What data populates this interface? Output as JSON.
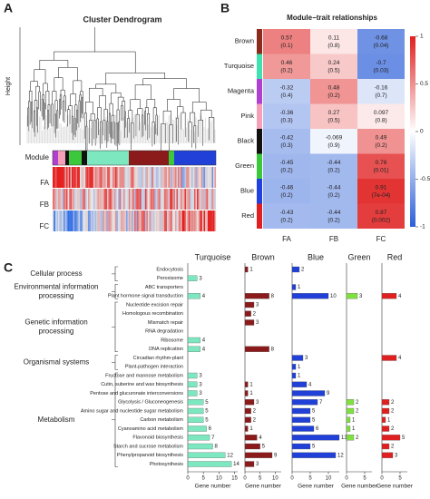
{
  "panel_a": {
    "letter": "A",
    "title": "Cluster Dendrogram",
    "y_label": "Height",
    "tracks": [
      "Module",
      "FA",
      "FB",
      "FC"
    ]
  },
  "panel_b": {
    "letter": "B",
    "title": "Module−trait relationships",
    "rows": [
      "Brown",
      "Turquoise",
      "Magenta",
      "Pink",
      "Black",
      "Green",
      "Blue",
      "Red"
    ],
    "row_colors": [
      "#8b2a1a",
      "#40e0b0",
      "#b040d0",
      "#f4a0b8",
      "#111111",
      "#3cc83c",
      "#2040e0",
      "#e02020"
    ],
    "columns": [
      "FA",
      "FB",
      "FC"
    ],
    "cells": [
      [
        {
          "r": 0.57,
          "p": "(0.1)"
        },
        {
          "r": 0.11,
          "p": "(0.8)"
        },
        {
          "r": -0.68,
          "p": "(0.04)"
        }
      ],
      [
        {
          "r": 0.46,
          "p": "(0.2)"
        },
        {
          "r": 0.24,
          "p": "(0.5)"
        },
        {
          "r": -0.7,
          "p": "(0.03)"
        }
      ],
      [
        {
          "r": -0.32,
          "p": "(0.4)"
        },
        {
          "r": 0.48,
          "p": "(0.2)"
        },
        {
          "r": -0.16,
          "p": "(0.7)"
        }
      ],
      [
        {
          "r": -0.36,
          "p": "(0.3)"
        },
        {
          "r": 0.27,
          "p": "(0.5)"
        },
        {
          "r": 0.097,
          "p": "(0.8)"
        }
      ],
      [
        {
          "r": -0.42,
          "p": "(0.3)"
        },
        {
          "r": -0.069,
          "p": "(0.9)"
        },
        {
          "r": 0.49,
          "p": "(0.2)"
        }
      ],
      [
        {
          "r": -0.45,
          "p": "(0.2)"
        },
        {
          "r": -0.44,
          "p": "(0.2)"
        },
        {
          "r": 0.78,
          "p": "(0.01)"
        }
      ],
      [
        {
          "r": -0.46,
          "p": "(0.2)"
        },
        {
          "r": -0.44,
          "p": "(0.2)"
        },
        {
          "r": 0.91,
          "p": "(7e-04)"
        }
      ],
      [
        {
          "r": -0.43,
          "p": "(0.2)"
        },
        {
          "r": -0.44,
          "p": "(0.2)"
        },
        {
          "r": 0.87,
          "p": "(0.002)"
        }
      ]
    ],
    "scale_ticks": [
      1,
      0.5,
      0,
      -0.5,
      -1
    ]
  },
  "panel_c": {
    "letter": "C",
    "x_label": "Gene number",
    "groups": [
      {
        "lines": [
          "Cellular process"
        ],
        "pathways": [
          "Endocytosis",
          "Peroxisome"
        ]
      },
      {
        "lines": [
          "Environmental information",
          "processing"
        ],
        "pathways": [
          "ABC transporters",
          "Plant hormone signal transduction"
        ]
      },
      {
        "lines": [
          "Genetic information",
          "processing"
        ],
        "pathways": [
          "Nucleotide excision repair",
          "Homologous recombination",
          "Mismatch repair",
          "RNA degradation",
          "Ribosome",
          "DNA replication"
        ]
      },
      {
        "lines": [
          "Organismal systems"
        ],
        "pathways": [
          "Circadian rhythm-plant",
          "Plant-pathogen interaction"
        ]
      },
      {
        "lines": [
          "Metabolism"
        ],
        "pathways": [
          "Fructose and mannose metabolism",
          "Cutin, suberine and wax biosynthesis",
          "Pentose and glucuronate interconversions",
          "Glycolysis / Gluconeogenesis",
          "Amino sugar and nucleotide sugar metabolism",
          "Carbon metabolism",
          "Cyanoamino acid metabolism",
          "Flavonoid biosynthesis",
          "Starch and sucrose metabolism",
          "Phenylpropanoid biosynthesis",
          "Photosynthesis"
        ]
      }
    ],
    "modules": [
      {
        "name": "Turquoise",
        "color": "#7de8c0",
        "xlim": [
          0,
          16
        ],
        "ticks": [
          0,
          5,
          10,
          15
        ],
        "values": [
          null,
          3,
          null,
          4,
          null,
          null,
          null,
          null,
          4,
          4,
          null,
          null,
          3,
          3,
          3,
          5,
          5,
          5,
          6,
          7,
          8,
          12,
          14
        ]
      },
      {
        "name": "Brown",
        "color": "#8b1a1a",
        "xlim": [
          0,
          12
        ],
        "ticks": [
          0,
          5,
          10
        ],
        "values": [
          1,
          null,
          null,
          8,
          3,
          2,
          3,
          null,
          null,
          8,
          null,
          null,
          null,
          1,
          1,
          3,
          2,
          2,
          1,
          4,
          5,
          9,
          3
        ]
      },
      {
        "name": "Blue",
        "color": "#2040d8",
        "xlim": [
          0,
          13
        ],
        "ticks": [
          0,
          5,
          10
        ],
        "values": [
          2,
          null,
          1,
          10,
          null,
          null,
          null,
          null,
          null,
          null,
          3,
          1,
          1,
          4,
          9,
          7,
          5,
          5,
          6,
          13,
          5,
          12,
          null
        ]
      },
      {
        "name": "Green",
        "color": "#80e040",
        "xlim": [
          0,
          7
        ],
        "ticks": [
          0,
          5
        ],
        "values": [
          null,
          null,
          null,
          3,
          null,
          null,
          null,
          null,
          null,
          null,
          null,
          null,
          null,
          null,
          null,
          2,
          2,
          1,
          1,
          2,
          null,
          null,
          null
        ]
      },
      {
        "name": "Red",
        "color": "#e02020",
        "xlim": [
          0,
          7
        ],
        "ticks": [
          0,
          5
        ],
        "values": [
          null,
          null,
          null,
          4,
          null,
          null,
          null,
          null,
          null,
          null,
          4,
          null,
          null,
          null,
          null,
          2,
          2,
          1,
          2,
          5,
          2,
          3,
          null
        ]
      }
    ]
  }
}
